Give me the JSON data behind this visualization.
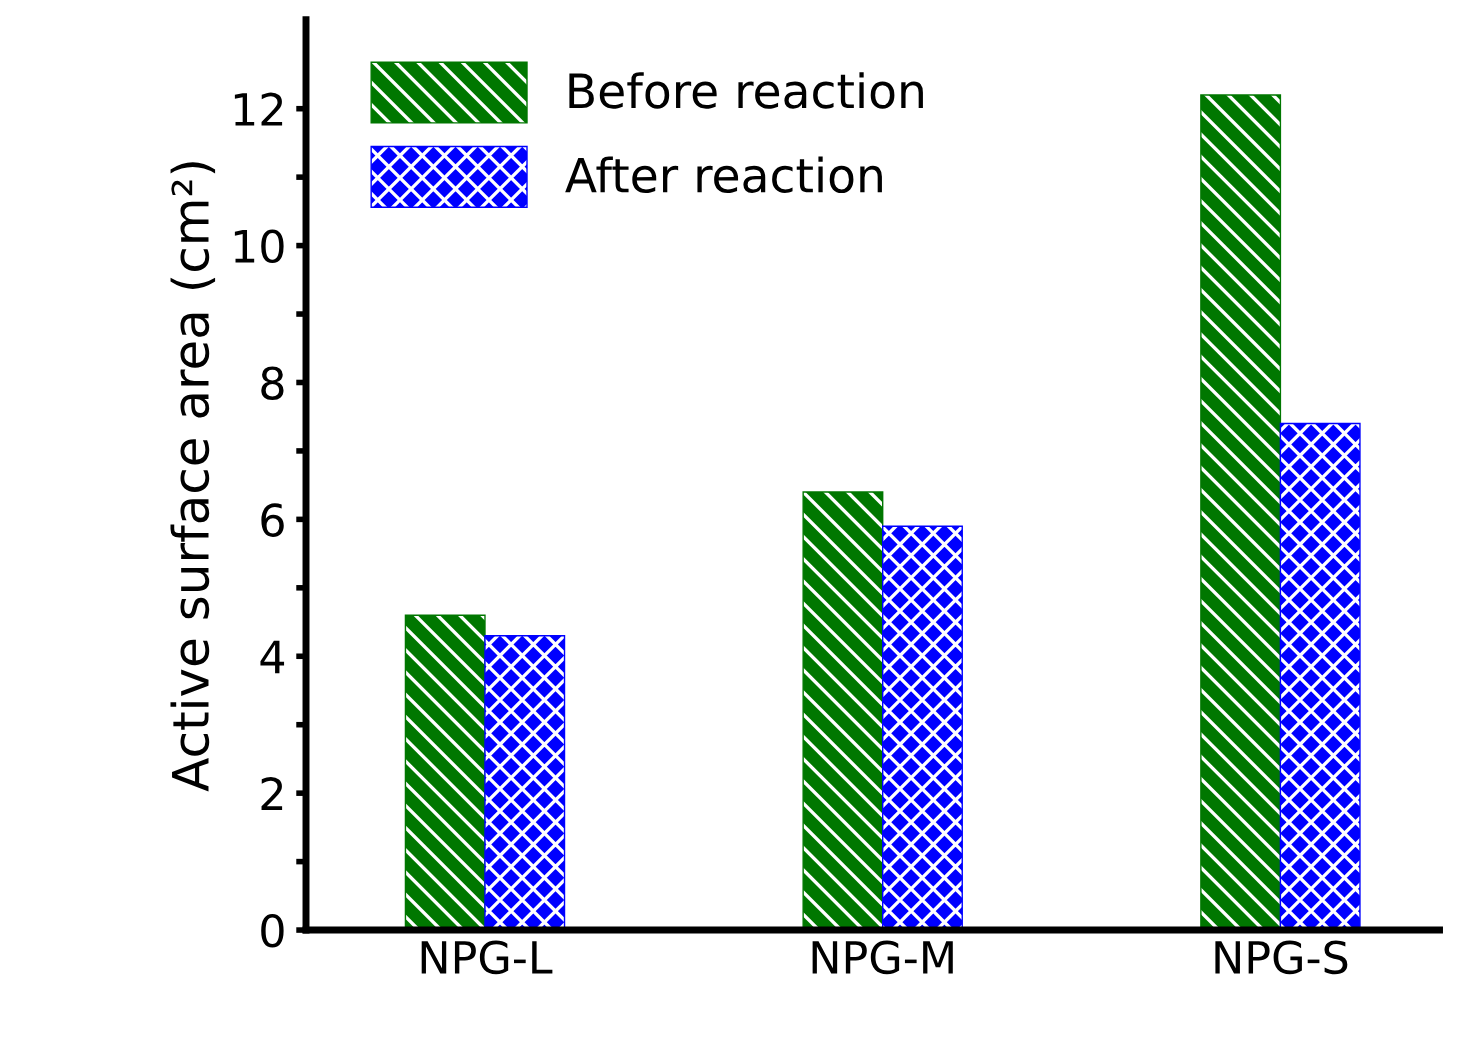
{
  "chart_data": {
    "type": "bar",
    "ylabel": "Active surface area (cm²)",
    "categories": [
      "NPG-L",
      "NPG-M",
      "NPG-S"
    ],
    "series": [
      {
        "name": "Before reaction",
        "color": "#007700",
        "values": [
          4.6,
          6.4,
          12.2
        ]
      },
      {
        "name": "After reaction",
        "color": "#0000ff",
        "values": [
          4.3,
          5.9,
          7.4
        ]
      }
    ],
    "ylim": [
      0,
      13.3
    ],
    "yticks": [
      0,
      {
        "value": 1,
        "label": null
      },
      2,
      {
        "value": 3,
        "label": null
      },
      4,
      {
        "value": 5,
        "label": null
      },
      6,
      {
        "value": 7,
        "label": null
      },
      8,
      {
        "value": 9,
        "label": null
      },
      10,
      {
        "value": 11,
        "label": null
      },
      12
    ],
    "legend": "top left",
    "grid": false
  }
}
